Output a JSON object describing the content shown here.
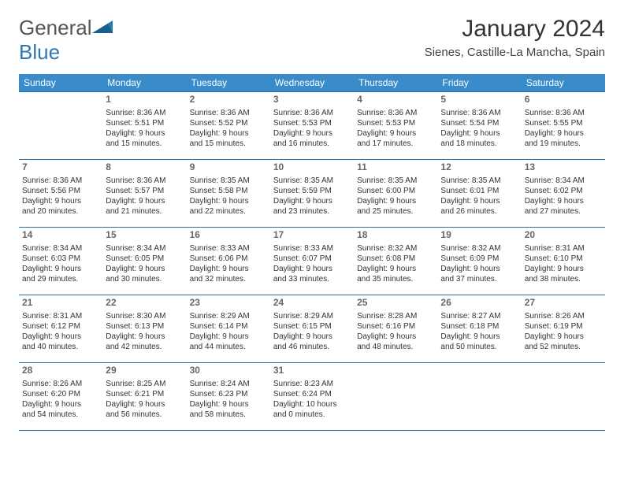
{
  "logo": {
    "text1": "General",
    "text2": "Blue"
  },
  "title": "January 2024",
  "location": "Sienes, Castille-La Mancha, Spain",
  "colors": {
    "header_bg": "#3a8bc9",
    "header_text": "#ffffff",
    "row_border": "#2a6fa5",
    "logo_blue": "#2a7ab0"
  },
  "weekdays": [
    "Sunday",
    "Monday",
    "Tuesday",
    "Wednesday",
    "Thursday",
    "Friday",
    "Saturday"
  ],
  "weeks": [
    [
      {
        "n": "",
        "l1": "",
        "l2": "",
        "l3": "",
        "l4": ""
      },
      {
        "n": "1",
        "l1": "Sunrise: 8:36 AM",
        "l2": "Sunset: 5:51 PM",
        "l3": "Daylight: 9 hours",
        "l4": "and 15 minutes."
      },
      {
        "n": "2",
        "l1": "Sunrise: 8:36 AM",
        "l2": "Sunset: 5:52 PM",
        "l3": "Daylight: 9 hours",
        "l4": "and 15 minutes."
      },
      {
        "n": "3",
        "l1": "Sunrise: 8:36 AM",
        "l2": "Sunset: 5:53 PM",
        "l3": "Daylight: 9 hours",
        "l4": "and 16 minutes."
      },
      {
        "n": "4",
        "l1": "Sunrise: 8:36 AM",
        "l2": "Sunset: 5:53 PM",
        "l3": "Daylight: 9 hours",
        "l4": "and 17 minutes."
      },
      {
        "n": "5",
        "l1": "Sunrise: 8:36 AM",
        "l2": "Sunset: 5:54 PM",
        "l3": "Daylight: 9 hours",
        "l4": "and 18 minutes."
      },
      {
        "n": "6",
        "l1": "Sunrise: 8:36 AM",
        "l2": "Sunset: 5:55 PM",
        "l3": "Daylight: 9 hours",
        "l4": "and 19 minutes."
      }
    ],
    [
      {
        "n": "7",
        "l1": "Sunrise: 8:36 AM",
        "l2": "Sunset: 5:56 PM",
        "l3": "Daylight: 9 hours",
        "l4": "and 20 minutes."
      },
      {
        "n": "8",
        "l1": "Sunrise: 8:36 AM",
        "l2": "Sunset: 5:57 PM",
        "l3": "Daylight: 9 hours",
        "l4": "and 21 minutes."
      },
      {
        "n": "9",
        "l1": "Sunrise: 8:35 AM",
        "l2": "Sunset: 5:58 PM",
        "l3": "Daylight: 9 hours",
        "l4": "and 22 minutes."
      },
      {
        "n": "10",
        "l1": "Sunrise: 8:35 AM",
        "l2": "Sunset: 5:59 PM",
        "l3": "Daylight: 9 hours",
        "l4": "and 23 minutes."
      },
      {
        "n": "11",
        "l1": "Sunrise: 8:35 AM",
        "l2": "Sunset: 6:00 PM",
        "l3": "Daylight: 9 hours",
        "l4": "and 25 minutes."
      },
      {
        "n": "12",
        "l1": "Sunrise: 8:35 AM",
        "l2": "Sunset: 6:01 PM",
        "l3": "Daylight: 9 hours",
        "l4": "and 26 minutes."
      },
      {
        "n": "13",
        "l1": "Sunrise: 8:34 AM",
        "l2": "Sunset: 6:02 PM",
        "l3": "Daylight: 9 hours",
        "l4": "and 27 minutes."
      }
    ],
    [
      {
        "n": "14",
        "l1": "Sunrise: 8:34 AM",
        "l2": "Sunset: 6:03 PM",
        "l3": "Daylight: 9 hours",
        "l4": "and 29 minutes."
      },
      {
        "n": "15",
        "l1": "Sunrise: 8:34 AM",
        "l2": "Sunset: 6:05 PM",
        "l3": "Daylight: 9 hours",
        "l4": "and 30 minutes."
      },
      {
        "n": "16",
        "l1": "Sunrise: 8:33 AM",
        "l2": "Sunset: 6:06 PM",
        "l3": "Daylight: 9 hours",
        "l4": "and 32 minutes."
      },
      {
        "n": "17",
        "l1": "Sunrise: 8:33 AM",
        "l2": "Sunset: 6:07 PM",
        "l3": "Daylight: 9 hours",
        "l4": "and 33 minutes."
      },
      {
        "n": "18",
        "l1": "Sunrise: 8:32 AM",
        "l2": "Sunset: 6:08 PM",
        "l3": "Daylight: 9 hours",
        "l4": "and 35 minutes."
      },
      {
        "n": "19",
        "l1": "Sunrise: 8:32 AM",
        "l2": "Sunset: 6:09 PM",
        "l3": "Daylight: 9 hours",
        "l4": "and 37 minutes."
      },
      {
        "n": "20",
        "l1": "Sunrise: 8:31 AM",
        "l2": "Sunset: 6:10 PM",
        "l3": "Daylight: 9 hours",
        "l4": "and 38 minutes."
      }
    ],
    [
      {
        "n": "21",
        "l1": "Sunrise: 8:31 AM",
        "l2": "Sunset: 6:12 PM",
        "l3": "Daylight: 9 hours",
        "l4": "and 40 minutes."
      },
      {
        "n": "22",
        "l1": "Sunrise: 8:30 AM",
        "l2": "Sunset: 6:13 PM",
        "l3": "Daylight: 9 hours",
        "l4": "and 42 minutes."
      },
      {
        "n": "23",
        "l1": "Sunrise: 8:29 AM",
        "l2": "Sunset: 6:14 PM",
        "l3": "Daylight: 9 hours",
        "l4": "and 44 minutes."
      },
      {
        "n": "24",
        "l1": "Sunrise: 8:29 AM",
        "l2": "Sunset: 6:15 PM",
        "l3": "Daylight: 9 hours",
        "l4": "and 46 minutes."
      },
      {
        "n": "25",
        "l1": "Sunrise: 8:28 AM",
        "l2": "Sunset: 6:16 PM",
        "l3": "Daylight: 9 hours",
        "l4": "and 48 minutes."
      },
      {
        "n": "26",
        "l1": "Sunrise: 8:27 AM",
        "l2": "Sunset: 6:18 PM",
        "l3": "Daylight: 9 hours",
        "l4": "and 50 minutes."
      },
      {
        "n": "27",
        "l1": "Sunrise: 8:26 AM",
        "l2": "Sunset: 6:19 PM",
        "l3": "Daylight: 9 hours",
        "l4": "and 52 minutes."
      }
    ],
    [
      {
        "n": "28",
        "l1": "Sunrise: 8:26 AM",
        "l2": "Sunset: 6:20 PM",
        "l3": "Daylight: 9 hours",
        "l4": "and 54 minutes."
      },
      {
        "n": "29",
        "l1": "Sunrise: 8:25 AM",
        "l2": "Sunset: 6:21 PM",
        "l3": "Daylight: 9 hours",
        "l4": "and 56 minutes."
      },
      {
        "n": "30",
        "l1": "Sunrise: 8:24 AM",
        "l2": "Sunset: 6:23 PM",
        "l3": "Daylight: 9 hours",
        "l4": "and 58 minutes."
      },
      {
        "n": "31",
        "l1": "Sunrise: 8:23 AM",
        "l2": "Sunset: 6:24 PM",
        "l3": "Daylight: 10 hours",
        "l4": "and 0 minutes."
      },
      {
        "n": "",
        "l1": "",
        "l2": "",
        "l3": "",
        "l4": ""
      },
      {
        "n": "",
        "l1": "",
        "l2": "",
        "l3": "",
        "l4": ""
      },
      {
        "n": "",
        "l1": "",
        "l2": "",
        "l3": "",
        "l4": ""
      }
    ]
  ]
}
